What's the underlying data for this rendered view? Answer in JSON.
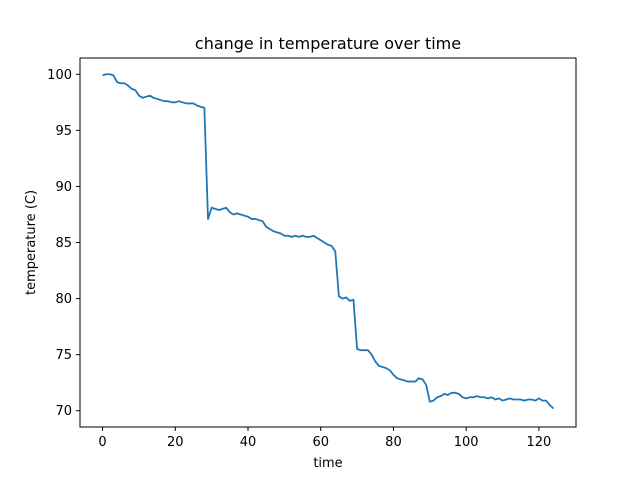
{
  "chart_data": {
    "type": "line",
    "title": "change in temperature over time",
    "xlabel": "time",
    "ylabel": "temperature (C)",
    "xlim": [
      -6.2,
      130.2
    ],
    "ylim": [
      68.55,
      101.45
    ],
    "xticks": [
      0,
      20,
      40,
      60,
      80,
      100,
      120
    ],
    "yticks": [
      70,
      75,
      80,
      85,
      90,
      95,
      100
    ],
    "grid": false,
    "legend": "none",
    "series": [
      {
        "color": "#1f77b4",
        "x": [
          0,
          1,
          2,
          3,
          4,
          5,
          6,
          7,
          8,
          9,
          10,
          11,
          12,
          13,
          14,
          15,
          16,
          17,
          18,
          19,
          20,
          21,
          22,
          23,
          24,
          25,
          26,
          27,
          28,
          29,
          30,
          31,
          32,
          33,
          34,
          35,
          36,
          37,
          38,
          39,
          40,
          41,
          42,
          43,
          44,
          45,
          46,
          47,
          48,
          49,
          50,
          51,
          52,
          53,
          54,
          55,
          56,
          57,
          58,
          59,
          60,
          61,
          62,
          63,
          64,
          65,
          66,
          67,
          68,
          69,
          70,
          71,
          72,
          73,
          74,
          75,
          76,
          77,
          78,
          79,
          80,
          81,
          82,
          83,
          84,
          85,
          86,
          87,
          88,
          89,
          90,
          91,
          92,
          93,
          94,
          95,
          96,
          97,
          98,
          99,
          100,
          101,
          102,
          103,
          104,
          105,
          106,
          107,
          108,
          109,
          110,
          111,
          112,
          113,
          114,
          115,
          116,
          117,
          118,
          119,
          120,
          121,
          122,
          123,
          124
        ],
        "y": [
          99.9,
          100.0,
          100.0,
          99.9,
          99.3,
          99.2,
          99.2,
          99.0,
          98.7,
          98.6,
          98.1,
          97.9,
          98.0,
          98.1,
          97.9,
          97.8,
          97.7,
          97.6,
          97.6,
          97.5,
          97.5,
          97.6,
          97.5,
          97.4,
          97.4,
          97.4,
          97.2,
          97.1,
          97.0,
          87.1,
          88.1,
          88.0,
          87.9,
          88.0,
          88.1,
          87.7,
          87.5,
          87.6,
          87.5,
          87.4,
          87.3,
          87.1,
          87.1,
          87.0,
          86.9,
          86.4,
          86.2,
          86.0,
          85.9,
          85.8,
          85.6,
          85.6,
          85.5,
          85.6,
          85.5,
          85.6,
          85.5,
          85.5,
          85.6,
          85.4,
          85.2,
          85.0,
          84.8,
          84.7,
          84.2,
          80.2,
          80.0,
          80.1,
          79.8,
          79.9,
          75.5,
          75.4,
          75.4,
          75.4,
          75.0,
          74.4,
          74.0,
          73.9,
          73.8,
          73.6,
          73.2,
          72.9,
          72.8,
          72.7,
          72.6,
          72.6,
          72.6,
          72.9,
          72.8,
          72.3,
          70.8,
          70.9,
          71.2,
          71.3,
          71.5,
          71.4,
          71.6,
          71.6,
          71.5,
          71.2,
          71.1,
          71.2,
          71.2,
          71.3,
          71.2,
          71.2,
          71.1,
          71.2,
          71.0,
          71.1,
          70.9,
          71.0,
          71.1,
          71.0,
          71.0,
          71.0,
          70.9,
          71.0,
          71.0,
          70.9,
          71.1,
          70.9,
          70.9,
          70.5,
          70.2
        ]
      }
    ]
  }
}
